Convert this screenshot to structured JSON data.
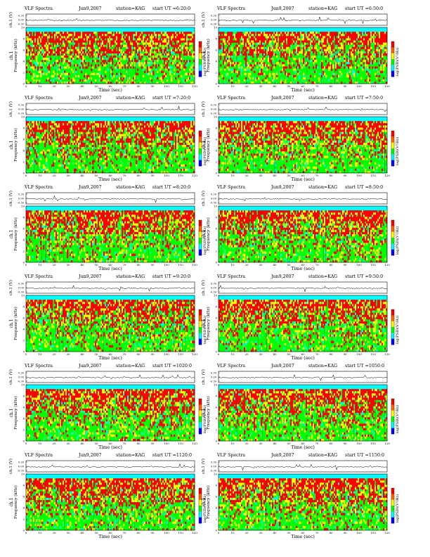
{
  "page": {
    "labels": {
      "series_prefix": "VLF Spectra",
      "station": "station=KAG",
      "start_prefix": "start  UT =",
      "ch_label": "ch.1 (V)",
      "freq_label_a": "ch.1",
      "freq_label_b": "Frequency  (kHz)",
      "x_label": "Time  (sec)",
      "cbar_label": "log(PSD)(V²/Hz)"
    },
    "colors": {
      "c0": "#00ff00",
      "c1": "#22ff66",
      "c2": "#00ffff",
      "c3": "#ffff00",
      "c4": "#ff0000",
      "c5": "#ff6600",
      "c6": "#ffffff",
      "c7": "#0000ff"
    }
  },
  "chart_data": [
    {
      "type": "heatmap",
      "date": "Jun9,2007",
      "start": "6:20:0",
      "xlim": [
        0,
        120
      ],
      "ylim": [
        0,
        10
      ],
      "xticks": [
        0,
        10,
        20,
        30,
        40,
        50,
        60,
        70,
        80,
        90,
        100,
        110,
        120
      ],
      "yticks": [
        0,
        2,
        4,
        6,
        8,
        10
      ],
      "ch_ticks": [
        "0.30",
        "0.00",
        "-0.30"
      ]
    },
    {
      "type": "heatmap",
      "date": "Jun9,2007",
      "start": "6:50:0",
      "xlim": [
        0,
        120
      ],
      "ylim": [
        0,
        10
      ],
      "xticks": [
        0,
        10,
        20,
        30,
        40,
        50,
        60,
        70,
        80,
        90,
        100,
        110,
        120
      ],
      "yticks": [
        0,
        2,
        4,
        6,
        8,
        10
      ],
      "ch_ticks": [
        "0.30",
        "0.00",
        "-0.30"
      ]
    },
    {
      "type": "heatmap",
      "date": "Jun9,2007",
      "start": "7:20:0",
      "xlim": [
        0,
        120
      ],
      "ylim": [
        0,
        10
      ],
      "xticks": [
        0,
        10,
        20,
        30,
        40,
        50,
        60,
        70,
        80,
        90,
        100,
        110,
        120
      ],
      "yticks": [
        0,
        2,
        4,
        6,
        8,
        10
      ],
      "ch_ticks": [
        "0.30",
        "0.00",
        "-0.30"
      ]
    },
    {
      "type": "heatmap",
      "date": "Jun9,2007",
      "start": "7:50:0",
      "xlim": [
        0,
        120
      ],
      "ylim": [
        0,
        10
      ],
      "xticks": [
        0,
        10,
        20,
        30,
        40,
        50,
        60,
        70,
        80,
        90,
        100,
        110,
        120
      ],
      "yticks": [
        0,
        2,
        4,
        6,
        8,
        10
      ],
      "ch_ticks": [
        "0.30",
        "0.00",
        "-0.30"
      ]
    },
    {
      "type": "heatmap",
      "date": "Jun9,2007",
      "start": "8:20:0",
      "xlim": [
        0,
        120
      ],
      "ylim": [
        0,
        10
      ],
      "xticks": [
        0,
        10,
        20,
        30,
        40,
        50,
        60,
        70,
        80,
        90,
        100,
        110,
        120
      ],
      "yticks": [
        0,
        2,
        4,
        6,
        8,
        10
      ],
      "ch_ticks": [
        "0.30",
        "0.00",
        "-0.30"
      ]
    },
    {
      "type": "heatmap",
      "date": "Jun9,2007",
      "start": "8:50:0",
      "xlim": [
        0,
        120
      ],
      "ylim": [
        0,
        10
      ],
      "xticks": [
        0,
        10,
        20,
        30,
        40,
        50,
        60,
        70,
        80,
        90,
        100,
        110,
        120
      ],
      "yticks": [
        0,
        2,
        4,
        6,
        8,
        10
      ],
      "ch_ticks": [
        "0.30",
        "0.00",
        "-0.30"
      ]
    },
    {
      "type": "heatmap",
      "date": "Jun9,2007",
      "start": "9:20:0",
      "xlim": [
        0,
        120
      ],
      "ylim": [
        0,
        10
      ],
      "xticks": [
        0,
        10,
        20,
        30,
        40,
        50,
        60,
        70,
        80,
        90,
        100,
        110,
        120
      ],
      "yticks": [
        0,
        2,
        4,
        6,
        8,
        10
      ],
      "ch_ticks": [
        "0.30",
        "0.00",
        "-0.30"
      ]
    },
    {
      "type": "heatmap",
      "date": "Jun9,2007",
      "start": "9:50:0",
      "xlim": [
        0,
        120
      ],
      "ylim": [
        0,
        10
      ],
      "xticks": [
        0,
        10,
        20,
        30,
        40,
        50,
        60,
        70,
        80,
        90,
        100,
        110,
        120
      ],
      "yticks": [
        0,
        2,
        4,
        6,
        8,
        10
      ],
      "ch_ticks": [
        "0.30",
        "0.00",
        "-0.30"
      ]
    },
    {
      "type": "heatmap",
      "date": "Jun9,2007",
      "start": "1020:0",
      "xlim": [
        0,
        120
      ],
      "ylim": [
        0,
        10
      ],
      "xticks": [
        0,
        10,
        20,
        30,
        40,
        50,
        60,
        70,
        80,
        90,
        100,
        110,
        120
      ],
      "yticks": [
        0,
        2,
        4,
        6,
        8,
        10
      ],
      "ch_ticks": [
        "0.30",
        "0.00",
        "-0.30"
      ]
    },
    {
      "type": "heatmap",
      "date": "Jun9,2007",
      "start": "1050:0",
      "xlim": [
        0,
        120
      ],
      "ylim": [
        0,
        10
      ],
      "xticks": [
        0,
        10,
        20,
        30,
        40,
        50,
        60,
        70,
        80,
        90,
        100,
        110,
        120
      ],
      "yticks": [
        0,
        2,
        4,
        6,
        8,
        10
      ],
      "ch_ticks": [
        "0.30",
        "0.00",
        "-0.30"
      ]
    },
    {
      "type": "heatmap",
      "date": "Jun9,2007",
      "start": "1120:0",
      "xlim": [
        0,
        120
      ],
      "ylim": [
        0,
        10
      ],
      "xticks": [
        0,
        10,
        20,
        30,
        40,
        50,
        60,
        70,
        80,
        90,
        100,
        110,
        120
      ],
      "yticks": [
        0,
        2,
        4,
        6,
        8,
        10
      ],
      "ch_ticks": [
        "0.30",
        "0.00",
        "-0.30"
      ]
    },
    {
      "type": "heatmap",
      "date": "Jun9,2007",
      "start": "1150:0",
      "xlim": [
        0,
        120
      ],
      "ylim": [
        0,
        10
      ],
      "xticks": [
        0,
        10,
        20,
        30,
        40,
        50,
        60,
        70,
        80,
        90,
        100,
        110,
        120
      ],
      "yticks": [
        0,
        2,
        4,
        6,
        8,
        10
      ],
      "ch_ticks": [
        "0.30",
        "0.00",
        "-0.30"
      ]
    }
  ]
}
